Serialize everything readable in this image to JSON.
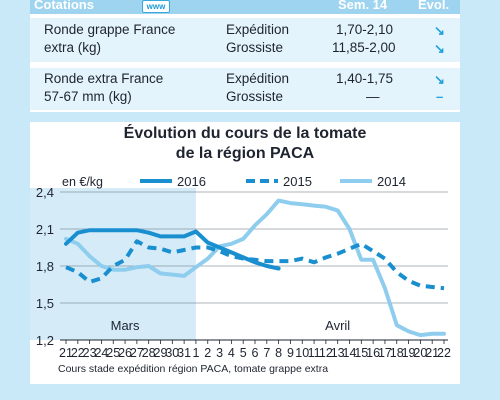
{
  "table": {
    "header": {
      "cotations": "Cotations",
      "www": "www",
      "week": "Sem. 14",
      "evol": "Évol."
    },
    "rows": [
      {
        "product_line1": "Ronde grappe France",
        "product_line2": "extra (kg)",
        "stage_line1": "Expédition",
        "stage_line2": "Grossiste",
        "price_line1": "1,70-2,10",
        "price_line2": "11,85-2,00",
        "evol_line1": "↘",
        "evol_line2": "↘"
      },
      {
        "product_line1": "Ronde extra France",
        "product_line2": "57-67 mm (kg)",
        "stage_line1": "Expédition",
        "stage_line2": "Grossiste",
        "price_line1": "1,40-1,75",
        "price_line2": "—",
        "evol_line1": "↘",
        "evol_line2": "–"
      }
    ],
    "colors": {
      "header": "#9fd4f0",
      "row_bg": "#e4f4fc",
      "arrow": "#1fa1dc"
    }
  },
  "chart_data": {
    "type": "line",
    "title_line1": "Évolution du cours de la tomate",
    "title_line2": "de la région PACA",
    "unit_label": "en €/kg",
    "ylim": [
      1.2,
      2.4
    ],
    "yticks": [
      "1,2",
      "1,5",
      "1,8",
      "2,1",
      "2,4"
    ],
    "ytick_values": [
      1.2,
      1.5,
      1.8,
      2.1,
      2.4
    ],
    "categories": [
      "21",
      "22",
      "23",
      "24",
      "25",
      "26",
      "27",
      "28",
      "29",
      "30",
      "31",
      "1",
      "2",
      "3",
      "4",
      "5",
      "6",
      "7",
      "8",
      "9",
      "10",
      "11",
      "12",
      "13",
      "14",
      "15",
      "16",
      "17",
      "18",
      "19",
      "20",
      "21",
      "22"
    ],
    "month_labels": {
      "march": "Mars",
      "april": "Avril"
    },
    "footnote": "Cours stade expédition région  PACA, tomate grappe extra",
    "series": [
      {
        "name": "2016",
        "color": "#1a8fd0",
        "style": "solid",
        "values": [
          1.98,
          2.07,
          2.09,
          2.09,
          2.09,
          2.09,
          2.09,
          2.07,
          2.04,
          2.04,
          2.04,
          2.08,
          1.99,
          1.95,
          1.91,
          1.87,
          1.83,
          1.8,
          1.78,
          null,
          null,
          null,
          null,
          null,
          null,
          null,
          null,
          null,
          null,
          null,
          null,
          null,
          null
        ]
      },
      {
        "name": "2015",
        "color": "#1a8fd0",
        "style": "dashed",
        "values": [
          1.79,
          1.75,
          1.67,
          1.7,
          1.8,
          1.85,
          2.0,
          1.95,
          1.94,
          1.91,
          1.93,
          1.95,
          1.95,
          1.92,
          1.88,
          1.86,
          1.85,
          1.84,
          1.84,
          1.84,
          1.86,
          1.83,
          1.87,
          1.9,
          1.94,
          1.98,
          1.92,
          1.86,
          1.75,
          1.68,
          1.64,
          1.63,
          1.62
        ]
      },
      {
        "name": "2014",
        "color": "#8fcdee",
        "style": "solid",
        "values": [
          2.02,
          1.98,
          1.88,
          1.8,
          1.77,
          1.77,
          1.79,
          1.8,
          1.74,
          1.73,
          1.72,
          1.79,
          1.86,
          1.96,
          1.98,
          2.02,
          2.13,
          2.22,
          2.33,
          2.31,
          2.3,
          2.29,
          2.28,
          2.25,
          2.1,
          1.85,
          1.85,
          1.62,
          1.32,
          1.27,
          1.24,
          1.25,
          1.25
        ]
      }
    ],
    "legend_placement": "top"
  }
}
